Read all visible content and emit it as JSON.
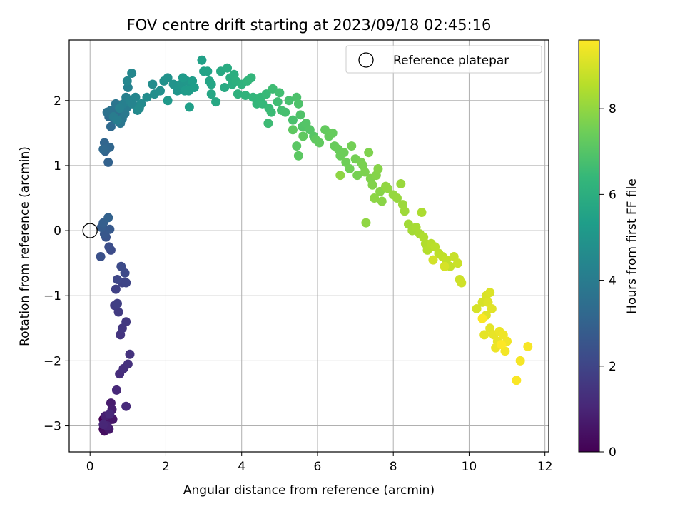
{
  "chart_data": {
    "type": "scatter",
    "title": "FOV centre drift starting at 2023/09/18 02:45:16",
    "xlabel": "Angular distance from reference (arcmin)",
    "ylabel": "Rotation from reference (arcmin)",
    "xlim": [
      -0.55,
      12.1
    ],
    "ylim": [
      -3.4,
      2.93
    ],
    "xticks": [
      0,
      2,
      4,
      6,
      8,
      10,
      12
    ],
    "yticks": [
      -3,
      -2,
      -1,
      0,
      1,
      2
    ],
    "grid": true,
    "legend": {
      "placement": "top-right",
      "entries": [
        "Reference platepar"
      ]
    },
    "reference_point": {
      "x": 0,
      "y": 0
    },
    "colorbar": {
      "label": "Hours from first FF file",
      "range": [
        0,
        9.6
      ],
      "ticks": [
        0,
        2,
        4,
        6,
        8
      ],
      "colormap": "viridis"
    },
    "colormap_stops": [
      "#440154",
      "#482878",
      "#3e4989",
      "#31688e",
      "#26828e",
      "#1f9e89",
      "#35b779",
      "#6ece58",
      "#b5de2b",
      "#fde725"
    ],
    "series": [
      {
        "hours_range": [
          0.0,
          1.1
        ],
        "points": [
          [
            0.35,
            -2.9
          ],
          [
            0.4,
            -3.0
          ],
          [
            0.35,
            -3.05
          ],
          [
            0.45,
            -2.95
          ],
          [
            0.5,
            -2.85
          ],
          [
            0.38,
            -3.08
          ],
          [
            0.55,
            -2.9
          ],
          [
            0.42,
            -2.95
          ],
          [
            0.6,
            -2.9
          ],
          [
            0.5,
            -3.05
          ],
          [
            0.55,
            -2.65
          ],
          [
            0.58,
            -2.75
          ],
          [
            0.4,
            -2.85
          ],
          [
            0.45,
            -3.0
          ],
          [
            0.35,
            -2.98
          ],
          [
            0.52,
            -2.82
          ]
        ]
      },
      {
        "hours_range": [
          1.1,
          2.2
        ],
        "points": [
          [
            0.7,
            -2.45
          ],
          [
            0.95,
            -2.7
          ],
          [
            0.78,
            -2.2
          ],
          [
            0.88,
            -2.12
          ],
          [
            1.0,
            -2.05
          ],
          [
            1.05,
            -1.9
          ],
          [
            0.8,
            -1.6
          ],
          [
            0.85,
            -1.5
          ],
          [
            0.95,
            -1.4
          ],
          [
            0.75,
            -1.25
          ],
          [
            0.65,
            -1.15
          ],
          [
            0.72,
            -1.12
          ],
          [
            0.68,
            -0.9
          ],
          [
            0.85,
            -0.8
          ],
          [
            0.95,
            -0.8
          ],
          [
            0.72,
            -0.75
          ],
          [
            0.92,
            -0.65
          ],
          [
            0.82,
            -0.55
          ]
        ]
      },
      {
        "hours_range": [
          2.2,
          3.0
        ],
        "points": [
          [
            0.55,
            -0.3
          ],
          [
            0.5,
            -0.25
          ],
          [
            0.28,
            -0.4
          ],
          [
            0.42,
            -0.1
          ],
          [
            0.38,
            -0.05
          ],
          [
            0.52,
            0.02
          ],
          [
            0.3,
            0.05
          ],
          [
            0.35,
            0.12
          ],
          [
            0.48,
            0.2
          ]
        ]
      },
      {
        "hours_range": [
          3.0,
          4.2
        ],
        "points": [
          [
            0.48,
            1.05
          ],
          [
            0.4,
            1.22
          ],
          [
            0.38,
            1.35
          ],
          [
            0.52,
            1.28
          ],
          [
            0.35,
            1.25
          ],
          [
            0.55,
            1.6
          ],
          [
            0.5,
            1.75
          ],
          [
            0.65,
            1.7
          ],
          [
            0.7,
            1.82
          ],
          [
            0.75,
            1.9
          ],
          [
            0.45,
            1.82
          ],
          [
            0.55,
            1.85
          ],
          [
            0.68,
            1.95
          ],
          [
            0.8,
            1.65
          ],
          [
            0.85,
            1.72
          ],
          [
            0.92,
            1.8
          ],
          [
            0.98,
            1.9
          ],
          [
            0.62,
            1.75
          ],
          [
            0.72,
            1.7
          ],
          [
            0.88,
            1.95
          ],
          [
            0.78,
            1.88
          ]
        ]
      },
      {
        "hours_range": [
          4.2,
          5.2
        ],
        "points": [
          [
            0.95,
            2.05
          ],
          [
            1.0,
            2.2
          ],
          [
            1.05,
            2.0
          ],
          [
            1.12,
            1.95
          ],
          [
            1.2,
            2.05
          ],
          [
            0.98,
            2.3
          ],
          [
            1.1,
            2.42
          ],
          [
            1.25,
            1.85
          ],
          [
            1.35,
            1.95
          ],
          [
            1.3,
            1.88
          ],
          [
            1.5,
            2.05
          ],
          [
            1.65,
            2.25
          ],
          [
            1.7,
            2.1
          ],
          [
            1.85,
            2.15
          ],
          [
            1.95,
            2.3
          ],
          [
            2.05,
            2.35
          ],
          [
            2.2,
            2.25
          ],
          [
            2.3,
            2.15
          ],
          [
            2.4,
            2.25
          ],
          [
            2.55,
            2.3
          ],
          [
            2.65,
            2.2
          ],
          [
            2.05,
            2.0
          ],
          [
            2.5,
            2.15
          ]
        ]
      },
      {
        "hours_range": [
          5.2,
          6.3
        ],
        "points": [
          [
            2.45,
            2.35
          ],
          [
            2.6,
            2.15
          ],
          [
            2.7,
            2.3
          ],
          [
            2.75,
            2.2
          ],
          [
            2.62,
            1.9
          ],
          [
            2.95,
            2.62
          ],
          [
            3.0,
            2.45
          ],
          [
            3.1,
            2.45
          ],
          [
            3.15,
            2.3
          ],
          [
            3.2,
            2.25
          ],
          [
            3.2,
            2.1
          ],
          [
            3.32,
            1.98
          ],
          [
            3.45,
            2.45
          ],
          [
            3.55,
            2.2
          ],
          [
            3.62,
            2.5
          ],
          [
            3.7,
            2.35
          ],
          [
            3.75,
            2.25
          ],
          [
            3.8,
            2.4
          ],
          [
            3.85,
            2.3
          ],
          [
            3.9,
            2.1
          ],
          [
            4.0,
            2.25
          ],
          [
            4.1,
            2.08
          ],
          [
            4.15,
            2.3
          ],
          [
            4.25,
            2.35
          ]
        ]
      },
      {
        "hours_range": [
          6.3,
          7.2
        ],
        "points": [
          [
            4.3,
            2.05
          ],
          [
            4.4,
            1.95
          ],
          [
            4.5,
            2.05
          ],
          [
            4.55,
            1.95
          ],
          [
            4.65,
            2.1
          ],
          [
            4.72,
            1.88
          ],
          [
            4.78,
            1.82
          ],
          [
            4.7,
            1.65
          ],
          [
            4.82,
            2.18
          ],
          [
            4.95,
            1.98
          ],
          [
            5.0,
            2.12
          ],
          [
            5.05,
            1.85
          ],
          [
            5.15,
            1.82
          ],
          [
            5.25,
            2.0
          ],
          [
            5.35,
            1.7
          ],
          [
            5.45,
            2.05
          ],
          [
            5.5,
            1.95
          ],
          [
            5.55,
            1.78
          ],
          [
            5.6,
            1.6
          ],
          [
            5.7,
            1.65
          ],
          [
            5.8,
            1.55
          ],
          [
            5.9,
            1.45
          ],
          [
            5.45,
            1.3
          ],
          [
            5.5,
            1.15
          ],
          [
            5.35,
            1.55
          ],
          [
            5.62,
            1.45
          ]
        ]
      },
      {
        "hours_range": [
          7.2,
          8.0
        ],
        "points": [
          [
            5.95,
            1.4
          ],
          [
            6.05,
            1.35
          ],
          [
            6.2,
            1.55
          ],
          [
            6.3,
            1.45
          ],
          [
            6.4,
            1.5
          ],
          [
            6.45,
            1.3
          ],
          [
            6.55,
            1.25
          ],
          [
            6.6,
            1.15
          ],
          [
            6.7,
            1.2
          ],
          [
            6.75,
            1.05
          ],
          [
            6.85,
            0.95
          ],
          [
            6.9,
            1.3
          ],
          [
            7.0,
            1.1
          ],
          [
            7.05,
            0.85
          ],
          [
            7.15,
            1.05
          ],
          [
            7.2,
            1.0
          ],
          [
            7.25,
            0.9
          ],
          [
            7.35,
            1.2
          ],
          [
            7.4,
            0.8
          ],
          [
            7.45,
            0.7
          ],
          [
            7.55,
            0.85
          ],
          [
            7.6,
            0.95
          ],
          [
            7.65,
            0.6
          ],
          [
            7.7,
            0.45
          ],
          [
            7.5,
            0.5
          ],
          [
            6.6,
            0.85
          ],
          [
            7.28,
            0.12
          ],
          [
            7.8,
            0.68
          ]
        ]
      },
      {
        "hours_range": [
          8.0,
          9.0
        ],
        "points": [
          [
            7.85,
            0.65
          ],
          [
            8.0,
            0.55
          ],
          [
            8.1,
            0.5
          ],
          [
            8.2,
            0.72
          ],
          [
            8.25,
            0.4
          ],
          [
            8.3,
            0.3
          ],
          [
            8.4,
            0.1
          ],
          [
            8.5,
            0.0
          ],
          [
            8.6,
            0.05
          ],
          [
            8.7,
            -0.05
          ],
          [
            8.75,
            0.28
          ],
          [
            8.8,
            -0.1
          ],
          [
            8.85,
            -0.2
          ],
          [
            8.9,
            -0.3
          ],
          [
            9.0,
            -0.2
          ],
          [
            9.1,
            -0.25
          ],
          [
            9.2,
            -0.35
          ],
          [
            9.3,
            -0.4
          ],
          [
            9.4,
            -0.45
          ],
          [
            9.5,
            -0.55
          ],
          [
            9.6,
            -0.4
          ],
          [
            9.7,
            -0.5
          ],
          [
            9.75,
            -0.75
          ],
          [
            9.8,
            -0.8
          ],
          [
            9.05,
            -0.45
          ],
          [
            9.35,
            -0.55
          ]
        ]
      },
      {
        "hours_range": [
          9.0,
          9.6
        ],
        "points": [
          [
            10.2,
            -1.2
          ],
          [
            10.35,
            -1.1
          ],
          [
            10.45,
            -1.0
          ],
          [
            10.55,
            -0.95
          ],
          [
            10.5,
            -1.1
          ],
          [
            10.45,
            -1.3
          ],
          [
            10.6,
            -1.2
          ],
          [
            10.55,
            -1.5
          ],
          [
            10.4,
            -1.6
          ],
          [
            10.65,
            -1.6
          ],
          [
            10.75,
            -1.7
          ],
          [
            10.8,
            -1.55
          ],
          [
            10.7,
            -1.8
          ],
          [
            10.9,
            -1.6
          ],
          [
            11.0,
            -1.7
          ],
          [
            10.95,
            -1.85
          ],
          [
            11.35,
            -2.0
          ],
          [
            11.55,
            -1.78
          ],
          [
            11.25,
            -2.3
          ],
          [
            10.35,
            -1.35
          ],
          [
            10.85,
            -1.75
          ]
        ]
      }
    ]
  }
}
